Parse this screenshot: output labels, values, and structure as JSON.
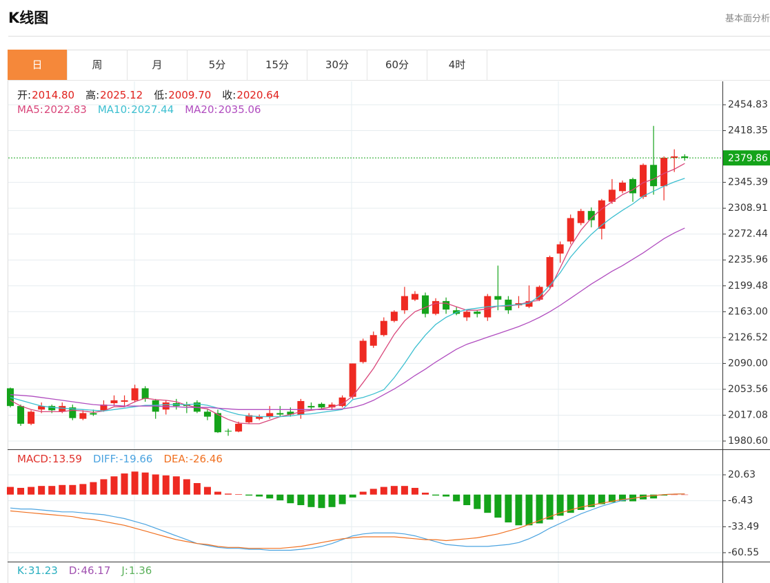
{
  "header": {
    "title": "K线图",
    "link": "基本面分析"
  },
  "tabs": {
    "items": [
      "日",
      "周",
      "月",
      "5分",
      "15分",
      "30分",
      "60分",
      "4时"
    ],
    "active": 0,
    "active_color": "#f5883a"
  },
  "chart_data": [
    {
      "type": "candlestick",
      "info": [
        {
          "label": "开:",
          "value": "2014.80"
        },
        {
          "label": "高:",
          "value": "2025.12"
        },
        {
          "label": "低:",
          "value": "2009.70"
        },
        {
          "label": "收:",
          "value": "2020.64"
        }
      ],
      "up_color": "#ee2a22",
      "down_color": "#14a31a",
      "open": [
        2055,
        2030,
        2005,
        2025,
        2030,
        2022,
        2028,
        2012,
        2020,
        2024,
        2034,
        2036,
        2038,
        2055,
        2038,
        2025,
        2034,
        2032,
        2035,
        2022,
        2020,
        1995,
        1994,
        2007,
        2012,
        2015,
        2020,
        2022,
        2018,
        2030,
        2033,
        2028,
        2030,
        2043,
        2092,
        2115,
        2130,
        2150,
        2165,
        2180,
        2186,
        2160,
        2178,
        2165,
        2155,
        2163,
        2155,
        2185,
        2180,
        2172,
        2170,
        2180,
        2198,
        2245,
        2262,
        2288,
        2305,
        2280,
        2318,
        2333,
        2350,
        2325,
        2370,
        2340,
        2380,
        2382
      ],
      "high": [
        2056,
        2032,
        2024,
        2035,
        2032,
        2035,
        2032,
        2024,
        2025,
        2038,
        2045,
        2045,
        2060,
        2058,
        2040,
        2038,
        2040,
        2036,
        2038,
        2025,
        2025,
        1998,
        2008,
        2020,
        2018,
        2030,
        2030,
        2028,
        2040,
        2035,
        2035,
        2035,
        2045,
        2090,
        2125,
        2135,
        2155,
        2165,
        2198,
        2192,
        2190,
        2182,
        2183,
        2170,
        2165,
        2165,
        2188,
        2228,
        2185,
        2185,
        2200,
        2200,
        2242,
        2262,
        2300,
        2308,
        2310,
        2322,
        2350,
        2348,
        2352,
        2372,
        2425,
        2382,
        2392,
        2385
      ],
      "low": [
        2028,
        2002,
        2003,
        2020,
        2020,
        2020,
        2010,
        2010,
        2016,
        2022,
        2030,
        2030,
        2035,
        2036,
        2012,
        2018,
        2025,
        2020,
        2020,
        2010,
        1992,
        1988,
        1993,
        2005,
        2010,
        2012,
        2015,
        2015,
        2012,
        2025,
        2025,
        2025,
        2028,
        2040,
        2090,
        2112,
        2128,
        2148,
        2160,
        2178,
        2155,
        2158,
        2160,
        2158,
        2150,
        2155,
        2150,
        2165,
        2160,
        2168,
        2168,
        2178,
        2196,
        2232,
        2258,
        2285,
        2282,
        2265,
        2315,
        2330,
        2318,
        2322,
        2328,
        2320,
        2360,
        2376
      ],
      "close": [
        2030,
        2005,
        2022,
        2030,
        2024,
        2030,
        2013,
        2020,
        2018,
        2032,
        2038,
        2038,
        2055,
        2040,
        2022,
        2035,
        2030,
        2030,
        2022,
        2015,
        1993,
        1994,
        2005,
        2017,
        2015,
        2020,
        2018,
        2018,
        2037,
        2028,
        2028,
        2032,
        2042,
        2090,
        2122,
        2130,
        2150,
        2163,
        2185,
        2188,
        2160,
        2178,
        2166,
        2160,
        2163,
        2160,
        2185,
        2180,
        2165,
        2175,
        2178,
        2198,
        2240,
        2258,
        2295,
        2305,
        2292,
        2320,
        2335,
        2345,
        2330,
        2370,
        2340,
        2380,
        2382,
        2379.86
      ],
      "series": [
        {
          "name": "MA5:",
          "legend_value": "2022.83",
          "color": "#d9467a",
          "values": [
            2038,
            2030,
            2025,
            2022,
            2022,
            2022,
            2024,
            2023,
            2021,
            2023,
            2029,
            2029,
            2036,
            2041,
            2039,
            2038,
            2036,
            2031,
            2028,
            2026,
            2018,
            2011,
            2006,
            2005,
            2005,
            2010,
            2015,
            2018,
            2022,
            2024,
            2026,
            2029,
            2033,
            2044,
            2063,
            2083,
            2107,
            2131,
            2150,
            2163,
            2169,
            2175,
            2175,
            2170,
            2165,
            2165,
            2167,
            2171,
            2171,
            2173,
            2177,
            2179,
            2195,
            2225,
            2255,
            2278,
            2295,
            2308,
            2318,
            2328,
            2335,
            2345,
            2350,
            2358,
            2364,
            2372
          ]
        },
        {
          "name": "MA10:",
          "legend_value": "2027.44",
          "color": "#3cbfd0",
          "values": [
            2042,
            2038,
            2034,
            2030,
            2028,
            2027,
            2026,
            2025,
            2024,
            2023,
            2025,
            2027,
            2029,
            2031,
            2031,
            2032,
            2032,
            2032,
            2033,
            2031,
            2027,
            2022,
            2018,
            2016,
            2015,
            2015,
            2015,
            2016,
            2018,
            2019,
            2021,
            2023,
            2025,
            2039,
            2042,
            2047,
            2053,
            2070,
            2090,
            2112,
            2130,
            2145,
            2155,
            2162,
            2166,
            2168,
            2170,
            2171,
            2172,
            2173,
            2175,
            2185,
            2200,
            2218,
            2240,
            2257,
            2272,
            2285,
            2296,
            2306,
            2315,
            2326,
            2333,
            2340,
            2346,
            2351
          ]
        },
        {
          "name": "MA20:",
          "legend_value": "2035.06",
          "color": "#b04cbf",
          "values": [
            2046,
            2045,
            2044,
            2042,
            2040,
            2038,
            2036,
            2034,
            2032,
            2031,
            2031,
            2030,
            2030,
            2030,
            2030,
            2029,
            2029,
            2028,
            2028,
            2028,
            2027,
            2026,
            2025,
            2025,
            2025,
            2025,
            2025,
            2025,
            2025,
            2025,
            2025,
            2025,
            2026,
            2028,
            2032,
            2038,
            2046,
            2054,
            2063,
            2073,
            2082,
            2092,
            2101,
            2110,
            2117,
            2122,
            2127,
            2132,
            2137,
            2142,
            2148,
            2155,
            2163,
            2172,
            2182,
            2192,
            2202,
            2211,
            2220,
            2228,
            2237,
            2246,
            2256,
            2266,
            2274,
            2281
          ]
        }
      ],
      "last_price": 2379.86,
      "last_price_color": "#14a31a",
      "ylim": [
        1968.94,
        2487.87
      ],
      "yticks": [
        2454.83,
        2418.35,
        2345.39,
        2308.91,
        2272.44,
        2235.96,
        2199.48,
        {
          "value": 2163,
          "label": "2163.00"
        },
        2126.52,
        {
          "value": 2090,
          "label": "2090.00"
        },
        2053.56,
        2017.08,
        {
          "value": 1980.6,
          "label": "1980.60"
        }
      ],
      "grid": true
    },
    {
      "type": "macd",
      "name": "MACD:",
      "legend_value": "13.59",
      "color": "#e0302a",
      "up_color": "#ee2a22",
      "down_color": "#14a31a",
      "values": [
        8,
        7,
        8,
        9,
        9,
        10,
        10,
        11,
        13,
        16,
        19,
        22,
        24,
        23,
        21,
        20,
        19,
        16,
        12,
        8,
        3,
        1,
        0.5,
        -1,
        -2,
        -4,
        -6,
        -9,
        -11,
        -13,
        -14,
        -13,
        -10,
        -3,
        3,
        6,
        8,
        9,
        9,
        7,
        2,
        -1,
        -2,
        -7,
        -11,
        -15,
        -19,
        -24,
        -29,
        -32,
        -32,
        -30,
        -26,
        -22,
        -19,
        -16,
        -13,
        -10,
        -8,
        -7,
        -7,
        -5,
        -4,
        -1,
        0,
        0
      ],
      "series": [
        {
          "name": "DIFF:",
          "legend_value": "-19.66",
          "color": "#4aa3e0",
          "values": [
            -14,
            -15,
            -15,
            -16,
            -17,
            -18,
            -18,
            -19,
            -20,
            -21,
            -23,
            -25,
            -28,
            -31,
            -35,
            -39,
            -43,
            -47,
            -51,
            -53,
            -55,
            -56,
            -56,
            -57,
            -57,
            -58,
            -58,
            -58,
            -57,
            -56,
            -54,
            -51,
            -47,
            -43,
            -41,
            -40,
            -40,
            -40,
            -41,
            -43,
            -46,
            -49,
            -52,
            -53,
            -54,
            -54,
            -54,
            -53,
            -52,
            -50,
            -46,
            -41,
            -35,
            -30,
            -25,
            -20,
            -16,
            -12,
            -9,
            -6,
            -4,
            -2,
            -1,
            0,
            0.5,
            0.7
          ]
        },
        {
          "name": "DEA:",
          "legend_value": "-26.46",
          "color": "#f07020",
          "values": [
            -17,
            -18,
            -19,
            -20,
            -21,
            -22,
            -23,
            -25,
            -26,
            -28,
            -30,
            -32,
            -35,
            -38,
            -41,
            -44,
            -47,
            -49,
            -51,
            -52,
            -54,
            -55,
            -55,
            -56,
            -56,
            -56,
            -56,
            -55,
            -54,
            -52,
            -50,
            -48,
            -46,
            -45,
            -44,
            -44,
            -44,
            -44,
            -45,
            -46,
            -47,
            -47,
            -48,
            -47,
            -46,
            -45,
            -43,
            -41,
            -38,
            -35,
            -31,
            -27,
            -23,
            -19,
            -16,
            -13,
            -11,
            -9,
            -7,
            -5,
            -4,
            -2,
            -1,
            0,
            0.5,
            0.7
          ]
        }
      ],
      "ylim": [
        -69.88,
        45.04
      ],
      "yticks": [
        20.63,
        -6.43,
        -33.49,
        -60.55
      ]
    },
    {
      "type": "kdj",
      "legend": [
        {
          "name": "K:",
          "legend_value": "31.23",
          "color": "#27aebf"
        },
        {
          "name": "D:",
          "legend_value": "46.17",
          "color": "#a050b0"
        },
        {
          "name": "J:",
          "legend_value": "1.36",
          "color": "#5ab05a"
        }
      ]
    }
  ]
}
